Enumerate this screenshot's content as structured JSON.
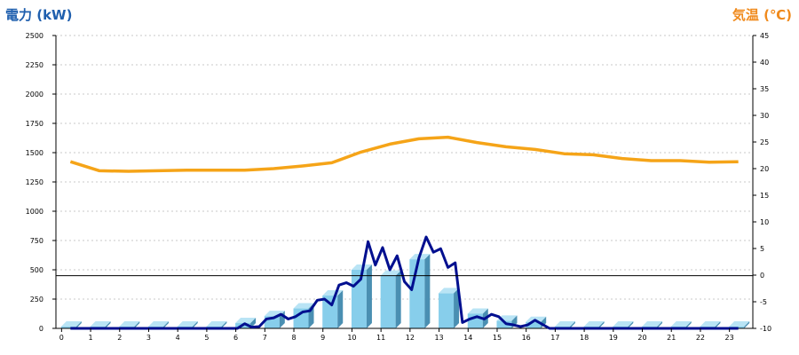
{
  "chart_data": {
    "type": "bar+line",
    "left_axis_label": "電力 (kW)",
    "right_axis_label": "気温 (℃)",
    "colors": {
      "left_title": "#1f5fae",
      "right_title": "#f08a1c",
      "bars": "#87ceeb",
      "power_line": "#000f8f",
      "temp_line": "#f5a418",
      "reference_line": "#000000"
    },
    "left_ylim": [
      0,
      2500
    ],
    "left_ticks": [
      "0",
      "250",
      "500",
      "750",
      "1000",
      "1250",
      "1500",
      "1750",
      "2000",
      "2250",
      "2500"
    ],
    "right_ylim": [
      -10,
      45
    ],
    "right_ticks": [
      "-10",
      "-5",
      "0",
      "5",
      "10",
      "15",
      "20",
      "25",
      "30",
      "35",
      "40",
      "45"
    ],
    "categories": [
      "0",
      "1",
      "2",
      "3",
      "4",
      "5",
      "6",
      "7",
      "8",
      "9",
      "10",
      "11",
      "12",
      "13",
      "14",
      "15",
      "16",
      "17",
      "18",
      "19",
      "20",
      "21",
      "22",
      "23"
    ],
    "bars": [
      {
        "hour": "0",
        "value": 15
      },
      {
        "hour": "1",
        "value": 15
      },
      {
        "hour": "2",
        "value": 15
      },
      {
        "hour": "3",
        "value": 15
      },
      {
        "hour": "4",
        "value": 15
      },
      {
        "hour": "5",
        "value": 15
      },
      {
        "hour": "6",
        "value": 45
      },
      {
        "hour": "7",
        "value": 105
      },
      {
        "hour": "8",
        "value": 170
      },
      {
        "hour": "9",
        "value": 280
      },
      {
        "hour": "10",
        "value": 500
      },
      {
        "hour": "11",
        "value": 450
      },
      {
        "hour": "12",
        "value": 590
      },
      {
        "hour": "13",
        "value": 300
      },
      {
        "hour": "14",
        "value": 125
      },
      {
        "hour": "15",
        "value": 65
      },
      {
        "hour": "16",
        "value": 55
      },
      {
        "hour": "17",
        "value": 15
      },
      {
        "hour": "18",
        "value": 15
      },
      {
        "hour": "19",
        "value": 15
      },
      {
        "hour": "20",
        "value": 15
      },
      {
        "hour": "21",
        "value": 15
      },
      {
        "hour": "22",
        "value": 15
      },
      {
        "hour": "23",
        "value": 15
      }
    ],
    "power_series": {
      "x": [
        0,
        0.5,
        1,
        1.5,
        2,
        2.5,
        3,
        3.5,
        4,
        4.5,
        5,
        5.5,
        5.75,
        6,
        6.25,
        6.5,
        6.75,
        7,
        7.25,
        7.5,
        7.75,
        8,
        8.25,
        8.5,
        8.75,
        9,
        9.25,
        9.5,
        9.75,
        10,
        10.25,
        10.5,
        10.75,
        11,
        11.25,
        11.5,
        11.75,
        12,
        12.25,
        12.5,
        12.75,
        13,
        13.25,
        13.5,
        13.75,
        14,
        14.25,
        14.5,
        14.75,
        15,
        15.25,
        15.5,
        15.75,
        16,
        16.5,
        17,
        18,
        19,
        20,
        21,
        22,
        23
      ],
      "y": [
        0,
        0,
        0,
        0,
        0,
        0,
        0,
        0,
        0,
        0,
        0,
        0,
        0,
        40,
        10,
        15,
        80,
        90,
        120,
        80,
        100,
        140,
        150,
        240,
        250,
        200,
        370,
        390,
        360,
        420,
        740,
        540,
        690,
        500,
        620,
        400,
        330,
        600,
        780,
        650,
        680,
        520,
        560,
        50,
        80,
        100,
        80,
        120,
        100,
        40,
        30,
        15,
        30,
        70,
        0,
        0,
        0,
        0,
        0,
        0,
        0,
        0
      ]
    },
    "temp_series": {
      "x": [
        0,
        1,
        2,
        3,
        4,
        5,
        6,
        7,
        8,
        9,
        10,
        11,
        12,
        13,
        14,
        15,
        16,
        17,
        18,
        19,
        20,
        21,
        22,
        23
      ],
      "y": [
        21.3,
        19.6,
        19.5,
        19.6,
        19.7,
        19.7,
        19.7,
        20.0,
        20.5,
        21.1,
        23.1,
        24.6,
        25.6,
        25.9,
        24.9,
        24.1,
        23.6,
        22.8,
        22.6,
        21.9,
        21.5,
        21.5,
        21.2,
        21.3
      ]
    },
    "reference_value": 450,
    "grid": true
  }
}
